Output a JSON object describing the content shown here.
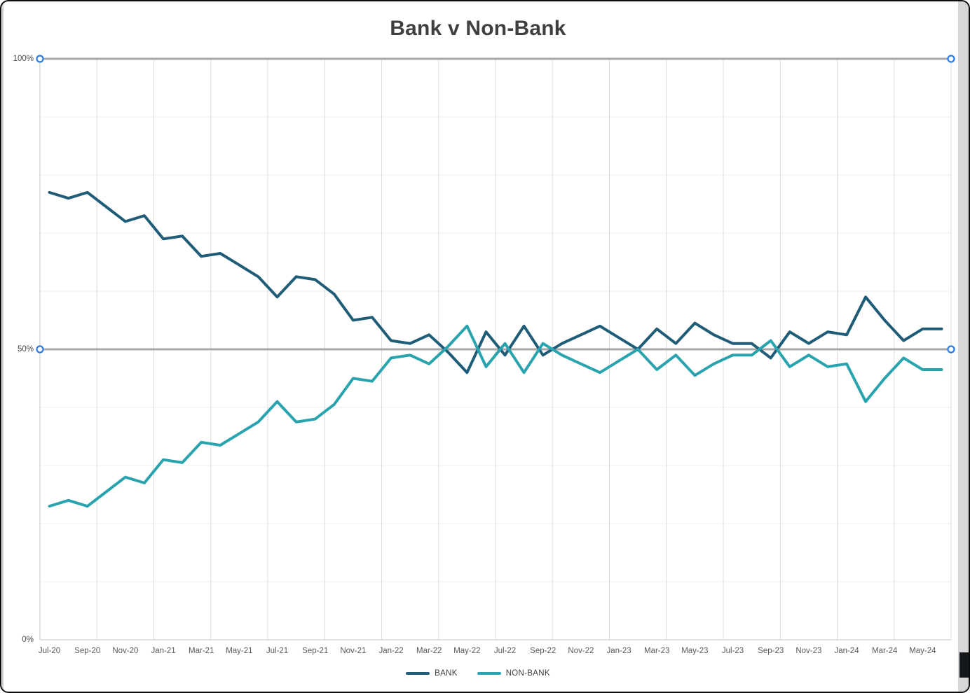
{
  "window": {
    "background": "#ffffff",
    "border_color": "#0d0d0d",
    "right_strip_color": "#d7d7d7",
    "right_fragment_color": "#14171c"
  },
  "chart_data": {
    "type": "line",
    "title": "Bank v Non-Bank",
    "x": [
      "Jul-20",
      "Aug-20",
      "Sep-20",
      "Oct-20",
      "Nov-20",
      "Dec-20",
      "Jan-21",
      "Feb-21",
      "Mar-21",
      "Apr-21",
      "May-21",
      "Jun-21",
      "Jul-21",
      "Aug-21",
      "Sep-21",
      "Oct-21",
      "Nov-21",
      "Dec-21",
      "Jan-22",
      "Feb-22",
      "Mar-22",
      "Apr-22",
      "May-22",
      "Jun-22",
      "Jul-22",
      "Aug-22",
      "Sep-22",
      "Oct-22",
      "Nov-22",
      "Dec-22",
      "Jan-23",
      "Feb-23",
      "Mar-23",
      "Apr-23",
      "May-23",
      "Jun-23",
      "Jul-23",
      "Aug-23",
      "Sep-23",
      "Oct-23",
      "Nov-23",
      "Dec-23",
      "Jan-24",
      "Feb-24",
      "Mar-24",
      "Apr-24",
      "May-24",
      "Jun-24"
    ],
    "series": [
      {
        "name": "BANK",
        "color": "#1f5c78",
        "values": [
          77,
          76,
          77,
          74.5,
          72,
          73,
          69,
          69.5,
          66,
          66.5,
          64.5,
          62.5,
          59,
          62.5,
          62,
          59.5,
          55,
          55.5,
          51.5,
          51,
          52.5,
          49.5,
          46,
          53,
          49,
          54,
          49,
          51,
          52.5,
          54,
          52,
          50,
          53.5,
          51,
          54.5,
          52.5,
          51,
          51,
          48.5,
          53,
          51,
          53,
          52.5,
          59,
          55,
          51.5,
          53.5,
          53.5
        ]
      },
      {
        "name": "NON-BANK",
        "color": "#29a3ae",
        "values": [
          23,
          24,
          23,
          25.5,
          28,
          27,
          31,
          30.5,
          34,
          33.5,
          35.5,
          37.5,
          41,
          37.5,
          38,
          40.5,
          45,
          44.5,
          48.5,
          49,
          47.5,
          50.5,
          54,
          47,
          51,
          46,
          51,
          49,
          47.5,
          46,
          48,
          50,
          46.5,
          49,
          45.5,
          47.5,
          49,
          49,
          51.5,
          47,
          49,
          47,
          47.5,
          41,
          45,
          48.5,
          46.5,
          46.5
        ]
      }
    ],
    "ylim": [
      0,
      100
    ],
    "y_ticks": [
      {
        "value": 100,
        "label": "100%"
      },
      {
        "value": 50,
        "label": "50%"
      },
      {
        "value": 0,
        "label": "0%"
      }
    ],
    "x_tick_interval": 2,
    "x_tick_labels": [
      "Jul-20",
      "Sep-20",
      "Nov-20",
      "Jan-21",
      "Mar-21",
      "May-21",
      "Jul-21",
      "Sep-21",
      "Nov-21",
      "Jan-22",
      "Mar-22",
      "May-22",
      "Jul-22",
      "Sep-22",
      "Nov-22",
      "Jan-23",
      "Mar-23",
      "May-23",
      "Jul-23",
      "Sep-23",
      "Nov-23",
      "Jan-24",
      "Mar-24",
      "May-24"
    ],
    "vertical_gridline_interval_months": 3,
    "horizontal_gridline_interval_pct": 10,
    "grid": "on",
    "legend_position": "bottom",
    "reference_lines": [
      {
        "value": 100,
        "color": "#a8a8a8",
        "has_selection_handles": true
      },
      {
        "value": 50,
        "color": "#a8a8a8",
        "has_selection_handles": true
      }
    ],
    "selection_handle_color": "#2f7ce0",
    "gridline_color": "#dcdcdc",
    "horizontal_gridline_color": "#ececec",
    "axis_line_color": "#c6c6c6"
  }
}
